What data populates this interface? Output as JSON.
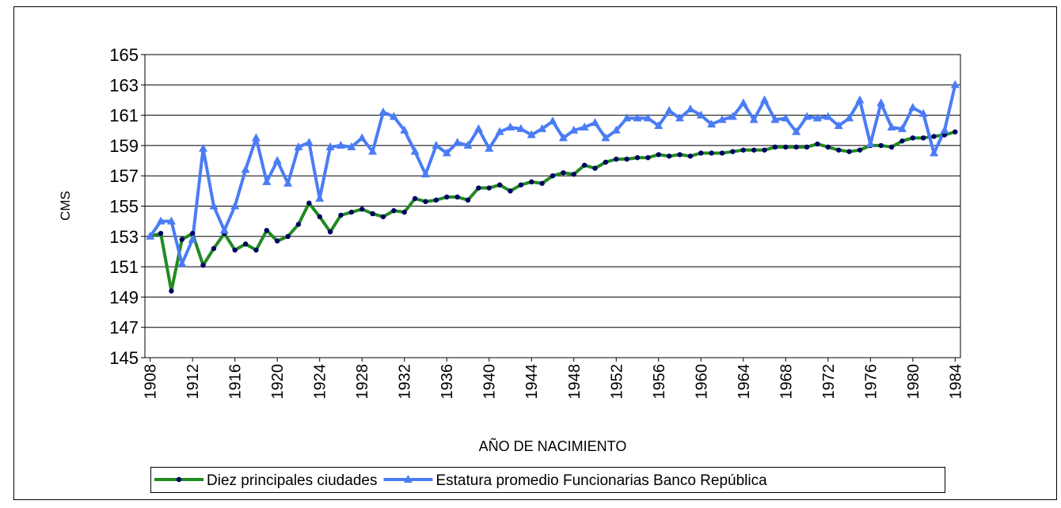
{
  "chart_data": {
    "type": "line",
    "x_label": "AÑO DE NACIMIENTO",
    "y_label": "CMS",
    "x": [
      1908,
      1909,
      1910,
      1911,
      1912,
      1913,
      1914,
      1915,
      1916,
      1917,
      1918,
      1919,
      1920,
      1921,
      1922,
      1923,
      1924,
      1925,
      1926,
      1927,
      1928,
      1929,
      1930,
      1931,
      1932,
      1933,
      1934,
      1935,
      1936,
      1937,
      1938,
      1939,
      1940,
      1941,
      1942,
      1943,
      1944,
      1945,
      1946,
      1947,
      1948,
      1949,
      1950,
      1951,
      1952,
      1953,
      1954,
      1955,
      1956,
      1957,
      1958,
      1959,
      1960,
      1961,
      1962,
      1963,
      1964,
      1965,
      1966,
      1967,
      1968,
      1969,
      1970,
      1971,
      1972,
      1973,
      1974,
      1975,
      1976,
      1977,
      1978,
      1979,
      1980,
      1981,
      1982,
      1983,
      1984
    ],
    "xlim": [
      1907.5,
      1984.5
    ],
    "xticks": [
      1908,
      1912,
      1916,
      1920,
      1924,
      1928,
      1932,
      1936,
      1940,
      1944,
      1948,
      1952,
      1956,
      1960,
      1964,
      1968,
      1972,
      1976,
      1980,
      1984
    ],
    "ylim": [
      145,
      165
    ],
    "yticks": [
      145,
      147,
      149,
      151,
      153,
      155,
      157,
      159,
      161,
      163,
      165
    ],
    "grid": true,
    "legend": "bottom",
    "series": [
      {
        "name": "Diez principales ciudades",
        "color": "#218a21",
        "marker": "circle",
        "values": [
          153.0,
          153.2,
          149.4,
          152.8,
          153.2,
          151.1,
          152.2,
          153.2,
          152.1,
          152.5,
          152.1,
          153.4,
          152.7,
          153.0,
          153.8,
          155.2,
          154.3,
          153.3,
          154.4,
          154.6,
          154.8,
          154.5,
          154.3,
          154.7,
          154.6,
          155.5,
          155.3,
          155.4,
          155.6,
          155.6,
          155.4,
          156.2,
          156.2,
          156.4,
          156.0,
          156.4,
          156.6,
          156.5,
          157.0,
          157.2,
          157.1,
          157.7,
          157.5,
          157.9,
          158.1,
          158.1,
          158.2,
          158.2,
          158.4,
          158.3,
          158.4,
          158.3,
          158.5,
          158.5,
          158.5,
          158.6,
          158.7,
          158.7,
          158.7,
          158.9,
          158.9,
          158.9,
          158.9,
          159.1,
          158.9,
          158.7,
          158.6,
          158.7,
          159.0,
          159.0,
          158.9,
          159.3,
          159.5,
          159.5,
          159.6,
          159.7,
          159.9
        ]
      },
      {
        "name": "Estatura promedio Funcionarias Banco República",
        "color": "#4a7cf5",
        "marker": "triangle",
        "values": [
          153.0,
          154.0,
          154.0,
          151.2,
          152.8,
          158.8,
          155.0,
          153.4,
          155.0,
          157.4,
          159.5,
          156.6,
          158.0,
          156.5,
          158.9,
          159.2,
          155.5,
          158.9,
          159.0,
          158.9,
          159.5,
          158.6,
          161.2,
          160.9,
          160.0,
          158.6,
          157.1,
          159.0,
          158.5,
          159.2,
          159.0,
          160.1,
          158.8,
          159.9,
          160.2,
          160.1,
          159.7,
          160.1,
          160.6,
          159.5,
          160.0,
          160.2,
          160.5,
          159.5,
          160.0,
          160.8,
          160.8,
          160.8,
          160.3,
          161.3,
          160.8,
          161.4,
          161.0,
          160.4,
          160.7,
          160.9,
          161.8,
          160.7,
          162.0,
          160.7,
          160.8,
          159.9,
          160.9,
          160.8,
          160.9,
          160.3,
          160.8,
          162.0,
          159.1,
          161.8,
          160.2,
          160.1,
          161.5,
          161.1,
          158.5,
          160.0,
          163.0
        ]
      }
    ]
  }
}
